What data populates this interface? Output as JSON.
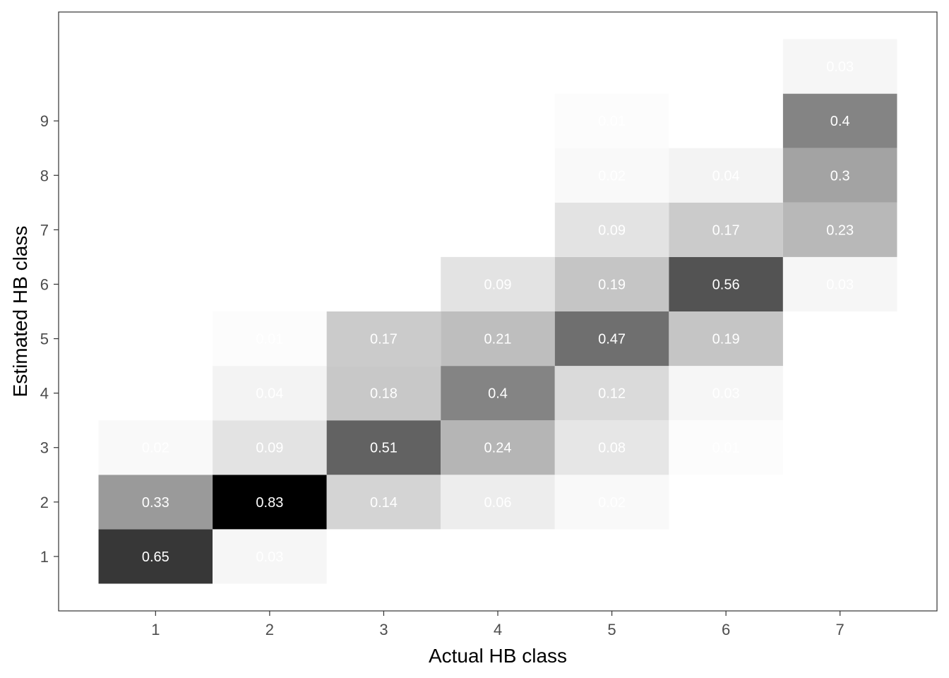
{
  "chart_data": {
    "type": "heatmap",
    "title": "",
    "xlabel": "Actual HB class",
    "ylabel": "Estimated HB class",
    "x_ticks": [
      "1",
      "2",
      "3",
      "4",
      "5",
      "6",
      "7"
    ],
    "y_ticks": [
      "1",
      "2",
      "3",
      "4",
      "5",
      "6",
      "7",
      "8",
      "9"
    ],
    "xlim": [
      0.5,
      7.5
    ],
    "ylim": [
      0,
      11
    ],
    "grid": false,
    "legend": "none",
    "colors": {
      "low": "#ffffff",
      "high": "#000000",
      "cell_text": "#ffffff",
      "panel_border": "#333333",
      "tick_text": "#4d4d4d"
    },
    "cells": [
      {
        "x": 1,
        "y": 1,
        "value": 0.65,
        "label": "0.65"
      },
      {
        "x": 1,
        "y": 2,
        "value": 0.33,
        "label": "0.33"
      },
      {
        "x": 1,
        "y": 3,
        "value": 0.02,
        "label": "0.02"
      },
      {
        "x": 2,
        "y": 1,
        "value": 0.03,
        "label": "0.03"
      },
      {
        "x": 2,
        "y": 2,
        "value": 0.83,
        "label": "0.83"
      },
      {
        "x": 2,
        "y": 3,
        "value": 0.09,
        "label": "0.09"
      },
      {
        "x": 2,
        "y": 4,
        "value": 0.04,
        "label": "0.04"
      },
      {
        "x": 2,
        "y": 5,
        "value": 0.01,
        "label": "0.01"
      },
      {
        "x": 3,
        "y": 2,
        "value": 0.14,
        "label": "0.14"
      },
      {
        "x": 3,
        "y": 3,
        "value": 0.51,
        "label": "0.51"
      },
      {
        "x": 3,
        "y": 4,
        "value": 0.18,
        "label": "0.18"
      },
      {
        "x": 3,
        "y": 5,
        "value": 0.17,
        "label": "0.17"
      },
      {
        "x": 4,
        "y": 2,
        "value": 0.06,
        "label": "0.06"
      },
      {
        "x": 4,
        "y": 3,
        "value": 0.24,
        "label": "0.24"
      },
      {
        "x": 4,
        "y": 4,
        "value": 0.4,
        "label": "0.4"
      },
      {
        "x": 4,
        "y": 5,
        "value": 0.21,
        "label": "0.21"
      },
      {
        "x": 4,
        "y": 6,
        "value": 0.09,
        "label": "0.09"
      },
      {
        "x": 5,
        "y": 2,
        "value": 0.02,
        "label": "0.02"
      },
      {
        "x": 5,
        "y": 3,
        "value": 0.08,
        "label": "0.08"
      },
      {
        "x": 5,
        "y": 4,
        "value": 0.12,
        "label": "0.12"
      },
      {
        "x": 5,
        "y": 5,
        "value": 0.47,
        "label": "0.47"
      },
      {
        "x": 5,
        "y": 6,
        "value": 0.19,
        "label": "0.19"
      },
      {
        "x": 5,
        "y": 7,
        "value": 0.09,
        "label": "0.09"
      },
      {
        "x": 5,
        "y": 8,
        "value": 0.02,
        "label": "0.02"
      },
      {
        "x": 5,
        "y": 9,
        "value": 0.01,
        "label": "0.01"
      },
      {
        "x": 6,
        "y": 3,
        "value": 0.01,
        "label": "0.01"
      },
      {
        "x": 6,
        "y": 4,
        "value": 0.03,
        "label": "0.03"
      },
      {
        "x": 6,
        "y": 5,
        "value": 0.19,
        "label": "0.19"
      },
      {
        "x": 6,
        "y": 6,
        "value": 0.56,
        "label": "0.56"
      },
      {
        "x": 6,
        "y": 7,
        "value": 0.17,
        "label": "0.17"
      },
      {
        "x": 6,
        "y": 8,
        "value": 0.04,
        "label": "0.04"
      },
      {
        "x": 7,
        "y": 6,
        "value": 0.03,
        "label": "0.03"
      },
      {
        "x": 7,
        "y": 7,
        "value": 0.23,
        "label": "0.23"
      },
      {
        "x": 7,
        "y": 8,
        "value": 0.3,
        "label": "0.3"
      },
      {
        "x": 7,
        "y": 9,
        "value": 0.4,
        "label": "0.4"
      },
      {
        "x": 7,
        "y": 10,
        "value": 0.03,
        "label": "0.03"
      }
    ]
  }
}
